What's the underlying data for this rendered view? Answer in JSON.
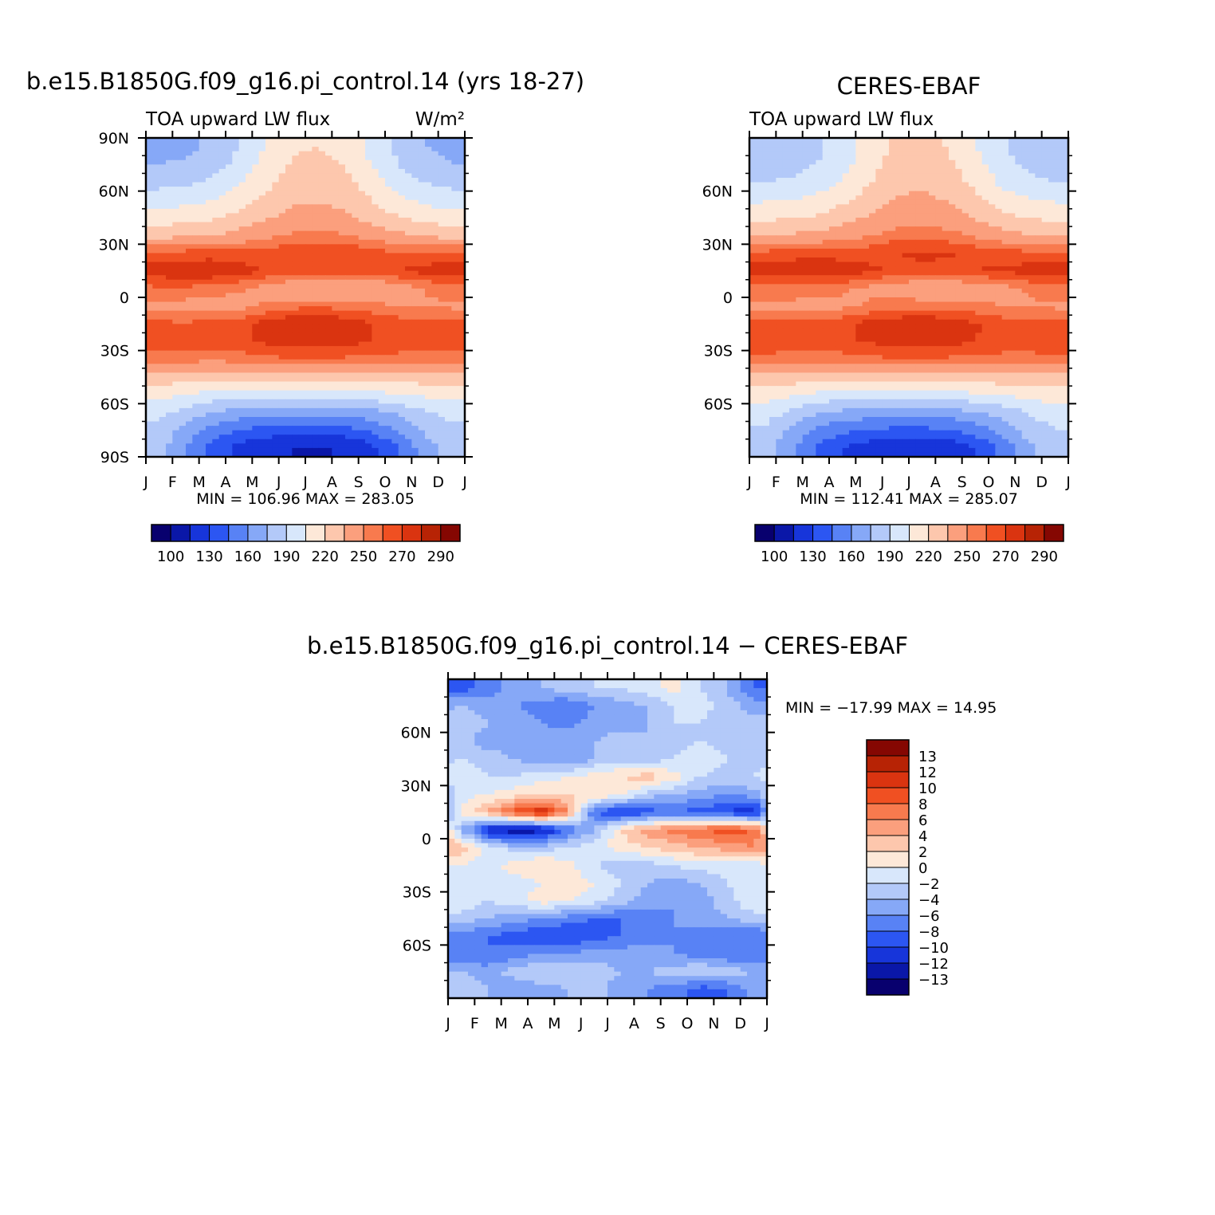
{
  "page": {
    "title_left": "b.e15.B1850G.f09_g16.pi_control.14 (yrs 18-27)",
    "title_right": "CERES-EBAF",
    "title_diff": "b.e15.B1850G.f09_g16.pi_control.14 − CERES-EBAF",
    "units": "W/m²"
  },
  "colors": {
    "abs_palette": [
      "#08006e",
      "#0a17a8",
      "#1735da",
      "#2c56f2",
      "#5882f5",
      "#86a8f7",
      "#b3c9f9",
      "#d8e7fb",
      "#fde8d8",
      "#fdc7ad",
      "#fb9f7d",
      "#f87a4e",
      "#f05022",
      "#da3410",
      "#b72305",
      "#850702"
    ],
    "diff_palette": [
      "#08006e",
      "#0a17a8",
      "#1735da",
      "#2c56f2",
      "#5882f5",
      "#86a8f7",
      "#b3c9f9",
      "#d8e7fb",
      "#fde8d8",
      "#fdc7ad",
      "#fb9f7d",
      "#f87a4e",
      "#f05022",
      "#da3410",
      "#b72305",
      "#850702"
    ]
  },
  "chart_data": [
    {
      "id": "model",
      "type": "heatmap",
      "title": "b.e15.B1850G.f09_g16.pi_control.14 (yrs 18-27)",
      "subtitle_left": "TOA upward LW flux",
      "subtitle_right": "W/m²",
      "xlabel": "",
      "ylabel": "",
      "x_ticks": [
        "J",
        "F",
        "M",
        "A",
        "M",
        "J",
        "J",
        "A",
        "S",
        "O",
        "N",
        "D",
        "J"
      ],
      "y_ticks": [
        "90N",
        "60N",
        "30N",
        "0",
        "30S",
        "60S",
        "90S"
      ],
      "y_tick_values": [
        90,
        60,
        30,
        0,
        -30,
        -60,
        -90
      ],
      "xlim": [
        0,
        12
      ],
      "ylim": [
        -90,
        90
      ],
      "min_max_label": "MIN =  106.96  MAX =  283.05",
      "min": 106.96,
      "max": 283.05,
      "levels": [
        100,
        110,
        120,
        130,
        140,
        150,
        160,
        170,
        180,
        190,
        200,
        210,
        220,
        230,
        240,
        250,
        260,
        270,
        280,
        290
      ],
      "colorbar_labels": [
        "100",
        "130",
        "160",
        "190",
        "220",
        "250",
        "270",
        "290"
      ],
      "grid_x_months": [
        0.5,
        1.5,
        2.5,
        3.5,
        4.5,
        5.5,
        6.5,
        7.5,
        8.5,
        9.5,
        10.5,
        11.5
      ],
      "grid_lat": [
        85,
        75,
        65,
        55,
        45,
        35,
        25,
        15,
        5,
        -5,
        -15,
        -25,
        -35,
        -45,
        -55,
        -65,
        -75,
        -85
      ],
      "values": [
        [
          170,
          172,
          178,
          190,
          205,
          218,
          220,
          215,
          200,
          185,
          175,
          170
        ],
        [
          175,
          177,
          183,
          195,
          210,
          222,
          224,
          219,
          205,
          190,
          180,
          175
        ],
        [
          185,
          187,
          192,
          203,
          216,
          227,
          229,
          224,
          212,
          198,
          189,
          185
        ],
        [
          198,
          200,
          204,
          213,
          223,
          232,
          234,
          230,
          220,
          208,
          201,
          198
        ],
        [
          212,
          214,
          218,
          225,
          233,
          240,
          242,
          238,
          230,
          221,
          214,
          212
        ],
        [
          230,
          232,
          235,
          240,
          246,
          252,
          254,
          251,
          245,
          238,
          233,
          230
        ],
        [
          262,
          264,
          265,
          264,
          265,
          268,
          270,
          269,
          265,
          261,
          262,
          262
        ],
        [
          277,
          278,
          279,
          275,
          270,
          266,
          265,
          266,
          268,
          270,
          274,
          277
        ],
        [
          258,
          258,
          256,
          252,
          245,
          237,
          233,
          232,
          236,
          242,
          250,
          256
        ],
        [
          247,
          245,
          242,
          245,
          252,
          257,
          258,
          257,
          253,
          250,
          249,
          248
        ],
        [
          262,
          262,
          263,
          267,
          275,
          279,
          279,
          277,
          270,
          266,
          264,
          263
        ],
        [
          268,
          267,
          266,
          268,
          272,
          275,
          276,
          274,
          270,
          268,
          268,
          268
        ],
        [
          255,
          254,
          253,
          254,
          257,
          259,
          259,
          258,
          256,
          255,
          255,
          255
        ],
        [
          228,
          226,
          225,
          225,
          227,
          229,
          229,
          228,
          227,
          227,
          228,
          228
        ],
        [
          210,
          205,
          198,
          196,
          195,
          195,
          195,
          196,
          199,
          204,
          208,
          210
        ],
        [
          195,
          185,
          175,
          168,
          166,
          165,
          165,
          166,
          170,
          178,
          188,
          195
        ],
        [
          185,
          170,
          155,
          145,
          140,
          138,
          138,
          140,
          148,
          162,
          178,
          187
        ],
        [
          180,
          160,
          140,
          125,
          115,
          110,
          108,
          112,
          125,
          145,
          168,
          182
        ]
      ]
    },
    {
      "id": "obs",
      "type": "heatmap",
      "title": "CERES-EBAF",
      "subtitle_left": "TOA upward LW flux",
      "xlabel": "",
      "ylabel": "",
      "x_ticks": [
        "J",
        "F",
        "M",
        "A",
        "M",
        "J",
        "J",
        "A",
        "S",
        "O",
        "N",
        "D",
        "J"
      ],
      "y_ticks": [
        "60N",
        "30N",
        "0",
        "30S",
        "60S"
      ],
      "y_tick_values": [
        60,
        30,
        0,
        -30,
        -60
      ],
      "xlim": [
        0,
        12
      ],
      "ylim": [
        -90,
        90
      ],
      "min_max_label": "MIN =  112.41  MAX =  285.07",
      "min": 112.41,
      "max": 285.07,
      "levels": [
        100,
        110,
        120,
        130,
        140,
        150,
        160,
        170,
        180,
        190,
        200,
        210,
        220,
        230,
        240,
        250,
        260,
        270,
        280,
        290
      ],
      "colorbar_labels": [
        "100",
        "130",
        "160",
        "190",
        "220",
        "250",
        "270",
        "290"
      ],
      "grid_x_months": [
        0.5,
        1.5,
        2.5,
        3.5,
        4.5,
        5.5,
        6.5,
        7.5,
        8.5,
        9.5,
        10.5,
        11.5
      ],
      "grid_lat": [
        85,
        75,
        65,
        55,
        45,
        35,
        25,
        15,
        5,
        -5,
        -15,
        -25,
        -35,
        -45,
        -55,
        -65,
        -75,
        -85
      ],
      "values": [
        [
          178,
          180,
          186,
          197,
          210,
          222,
          224,
          219,
          206,
          192,
          182,
          178
        ],
        [
          182,
          184,
          190,
          200,
          214,
          226,
          228,
          223,
          210,
          196,
          186,
          182
        ],
        [
          190,
          192,
          197,
          207,
          219,
          230,
          232,
          228,
          216,
          202,
          194,
          190
        ],
        [
          203,
          205,
          209,
          217,
          227,
          236,
          238,
          234,
          224,
          212,
          206,
          203
        ],
        [
          217,
          219,
          222,
          229,
          236,
          243,
          245,
          241,
          234,
          225,
          219,
          217
        ],
        [
          234,
          236,
          239,
          244,
          249,
          255,
          257,
          254,
          248,
          241,
          236,
          234
        ],
        [
          263,
          265,
          266,
          266,
          267,
          270,
          272,
          271,
          267,
          264,
          263,
          263
        ],
        [
          277,
          278,
          278,
          276,
          272,
          268,
          267,
          268,
          270,
          272,
          275,
          277
        ],
        [
          257,
          256,
          255,
          252,
          247,
          241,
          238,
          237,
          240,
          245,
          251,
          256
        ],
        [
          248,
          247,
          245,
          247,
          252,
          256,
          257,
          256,
          253,
          250,
          249,
          248
        ],
        [
          262,
          262,
          263,
          267,
          274,
          278,
          279,
          277,
          271,
          266,
          264,
          263
        ],
        [
          268,
          267,
          266,
          268,
          271,
          274,
          275,
          273,
          270,
          268,
          268,
          268
        ],
        [
          256,
          255,
          254,
          255,
          257,
          259,
          259,
          258,
          256,
          255,
          255,
          256
        ],
        [
          230,
          228,
          227,
          227,
          229,
          231,
          231,
          230,
          229,
          229,
          230,
          230
        ],
        [
          212,
          208,
          201,
          199,
          198,
          198,
          198,
          199,
          202,
          206,
          210,
          212
        ],
        [
          198,
          188,
          178,
          171,
          169,
          168,
          168,
          169,
          173,
          181,
          191,
          198
        ],
        [
          188,
          173,
          158,
          148,
          143,
          141,
          141,
          143,
          151,
          165,
          181,
          190
        ],
        [
          184,
          164,
          145,
          130,
          121,
          116,
          114,
          118,
          130,
          150,
          172,
          186
        ]
      ]
    },
    {
      "id": "diff",
      "type": "heatmap",
      "title": "b.e15.B1850G.f09_g16.pi_control.14 − CERES-EBAF",
      "xlabel": "",
      "ylabel": "",
      "x_ticks": [
        "J",
        "F",
        "M",
        "A",
        "M",
        "J",
        "J",
        "A",
        "S",
        "O",
        "N",
        "D",
        "J"
      ],
      "y_ticks": [
        "60N",
        "30N",
        "0",
        "30S",
        "60S"
      ],
      "y_tick_values": [
        60,
        30,
        0,
        -30,
        -60
      ],
      "xlim": [
        0,
        12
      ],
      "ylim": [
        -90,
        90
      ],
      "min_max_label": "MIN =  −17.99  MAX =   14.95",
      "min": -17.99,
      "max": 14.95,
      "levels": [
        -14,
        -13,
        -12,
        -10,
        -8,
        -6,
        -4,
        -2,
        0,
        2,
        4,
        6,
        8,
        10,
        12,
        13,
        14
      ],
      "colorbar_labels": [
        "13",
        "12",
        "10",
        "8",
        "6",
        "4",
        "2",
        "0",
        "−2",
        "−4",
        "−6",
        "−8",
        "−10",
        "−12",
        "−13"
      ],
      "grid_x_months": [
        0.5,
        1.5,
        2.5,
        3.5,
        4.5,
        5.5,
        6.5,
        7.5,
        8.5,
        9.5,
        10.5,
        11.5
      ],
      "grid_lat": [
        85,
        75,
        65,
        55,
        45,
        35,
        25,
        15,
        5,
        -5,
        -15,
        -25,
        -35,
        -45,
        -55,
        -65,
        -75,
        -85
      ],
      "values": [
        [
          -9,
          -7,
          -5,
          -4,
          -3,
          -2,
          -2,
          -1,
          1,
          -2,
          -4,
          -8
        ],
        [
          -4,
          -5,
          -6,
          -7,
          -8,
          -6,
          -5,
          -4,
          -2,
          -1,
          -3,
          -5
        ],
        [
          -3,
          -4,
          -5,
          -6,
          -7,
          -5,
          -5,
          -4,
          -2,
          -2,
          -4,
          -3
        ],
        [
          -3,
          -5,
          -5,
          -4,
          -4,
          -4,
          -3,
          -4,
          -3,
          -2,
          -3,
          -3
        ],
        [
          -2,
          -3,
          -4,
          -5,
          -6,
          -4,
          -3,
          -3,
          -2,
          -1,
          -2,
          -3
        ],
        [
          -1,
          -2,
          -2,
          -1,
          0,
          1,
          2,
          3,
          1,
          -2,
          -3,
          -2
        ],
        [
          -1,
          0,
          1,
          2,
          2,
          2,
          1,
          -3,
          -4,
          -5,
          -6,
          -5
        ],
        [
          1,
          4,
          9,
          12,
          6,
          -8,
          -11,
          -9,
          -8,
          -9,
          -10,
          -12
        ],
        [
          -4,
          -12,
          -14,
          -13,
          -8,
          -4,
          2,
          5,
          7,
          8,
          9,
          8
        ],
        [
          3,
          -1,
          -3,
          -3,
          -2,
          -1,
          1,
          2,
          3,
          4,
          5,
          6
        ],
        [
          0,
          -1,
          1,
          2,
          1,
          -2,
          -3,
          -3,
          -2,
          -1,
          -1,
          -1
        ],
        [
          -1,
          -2,
          -1,
          0,
          1,
          0,
          -2,
          -4,
          -5,
          -4,
          -2,
          -1
        ],
        [
          0,
          -2,
          -1,
          1,
          0,
          -1,
          -3,
          -5,
          -6,
          -5,
          -3,
          0
        ],
        [
          -3,
          -4,
          -5,
          -6,
          -7,
          -8,
          -8,
          -7,
          -6,
          -5,
          -4,
          -3
        ],
        [
          -7,
          -8,
          -9,
          -10,
          -10,
          -9,
          -8,
          -7,
          -6,
          -7,
          -8,
          -8
        ],
        [
          -8,
          -8,
          -7,
          -6,
          -6,
          -5,
          -5,
          -5,
          -6,
          -7,
          -8,
          -8
        ],
        [
          -4,
          -5,
          -3,
          -2,
          -2,
          -3,
          -4,
          -4,
          -3,
          -2,
          -3,
          -4
        ],
        [
          -3,
          -4,
          -6,
          -5,
          -4,
          -3,
          -5,
          -6,
          -7,
          -9,
          -8,
          -5
        ]
      ]
    }
  ]
}
